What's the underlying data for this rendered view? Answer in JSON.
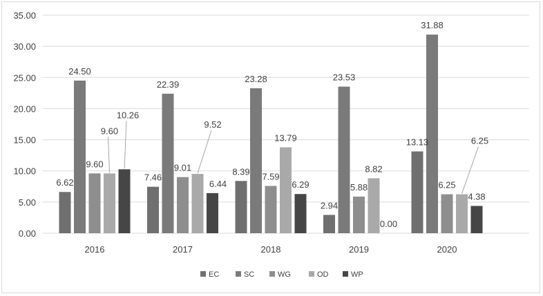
{
  "chart_data": {
    "type": "bar",
    "title": "",
    "xlabel": "",
    "ylabel": "",
    "ylim": [
      0,
      35
    ],
    "yticks": [
      "0.00",
      "5.00",
      "10.00",
      "15.00",
      "20.00",
      "25.00",
      "30.00",
      "35.00"
    ],
    "grid": true,
    "legend_position": "bottom",
    "categories": [
      "2016",
      "2017",
      "2018",
      "2019",
      "2020"
    ],
    "series": [
      {
        "name": "EC",
        "color": "#6f6f6f",
        "values": [
          6.62,
          7.46,
          8.39,
          2.94,
          13.13
        ],
        "labels": [
          "6.62",
          "7.46",
          "8.39",
          "2.94",
          "13.13"
        ]
      },
      {
        "name": "SC",
        "color": "#7a7a7a",
        "values": [
          24.5,
          22.39,
          23.28,
          23.53,
          31.88
        ],
        "labels": [
          "24.50",
          "22.39",
          "23.28",
          "23.53",
          "31.88"
        ]
      },
      {
        "name": "WG",
        "color": "#8e8e8e",
        "values": [
          9.6,
          9.01,
          7.59,
          5.88,
          6.25
        ],
        "labels": [
          "9.60",
          "9.01",
          "7.59",
          "5.88",
          "6.25"
        ]
      },
      {
        "name": "OD",
        "color": "#a9a9a9",
        "values": [
          9.6,
          9.52,
          13.79,
          8.82,
          6.25
        ],
        "labels": [
          "9.60",
          "9.52",
          "13.79",
          "8.82",
          "6.25"
        ]
      },
      {
        "name": "WP",
        "color": "#464646",
        "values": [
          10.26,
          6.44,
          6.29,
          0.0,
          4.38
        ],
        "labels": [
          "10.26",
          "6.44",
          "6.29",
          "0.00",
          "4.38"
        ]
      }
    ]
  }
}
